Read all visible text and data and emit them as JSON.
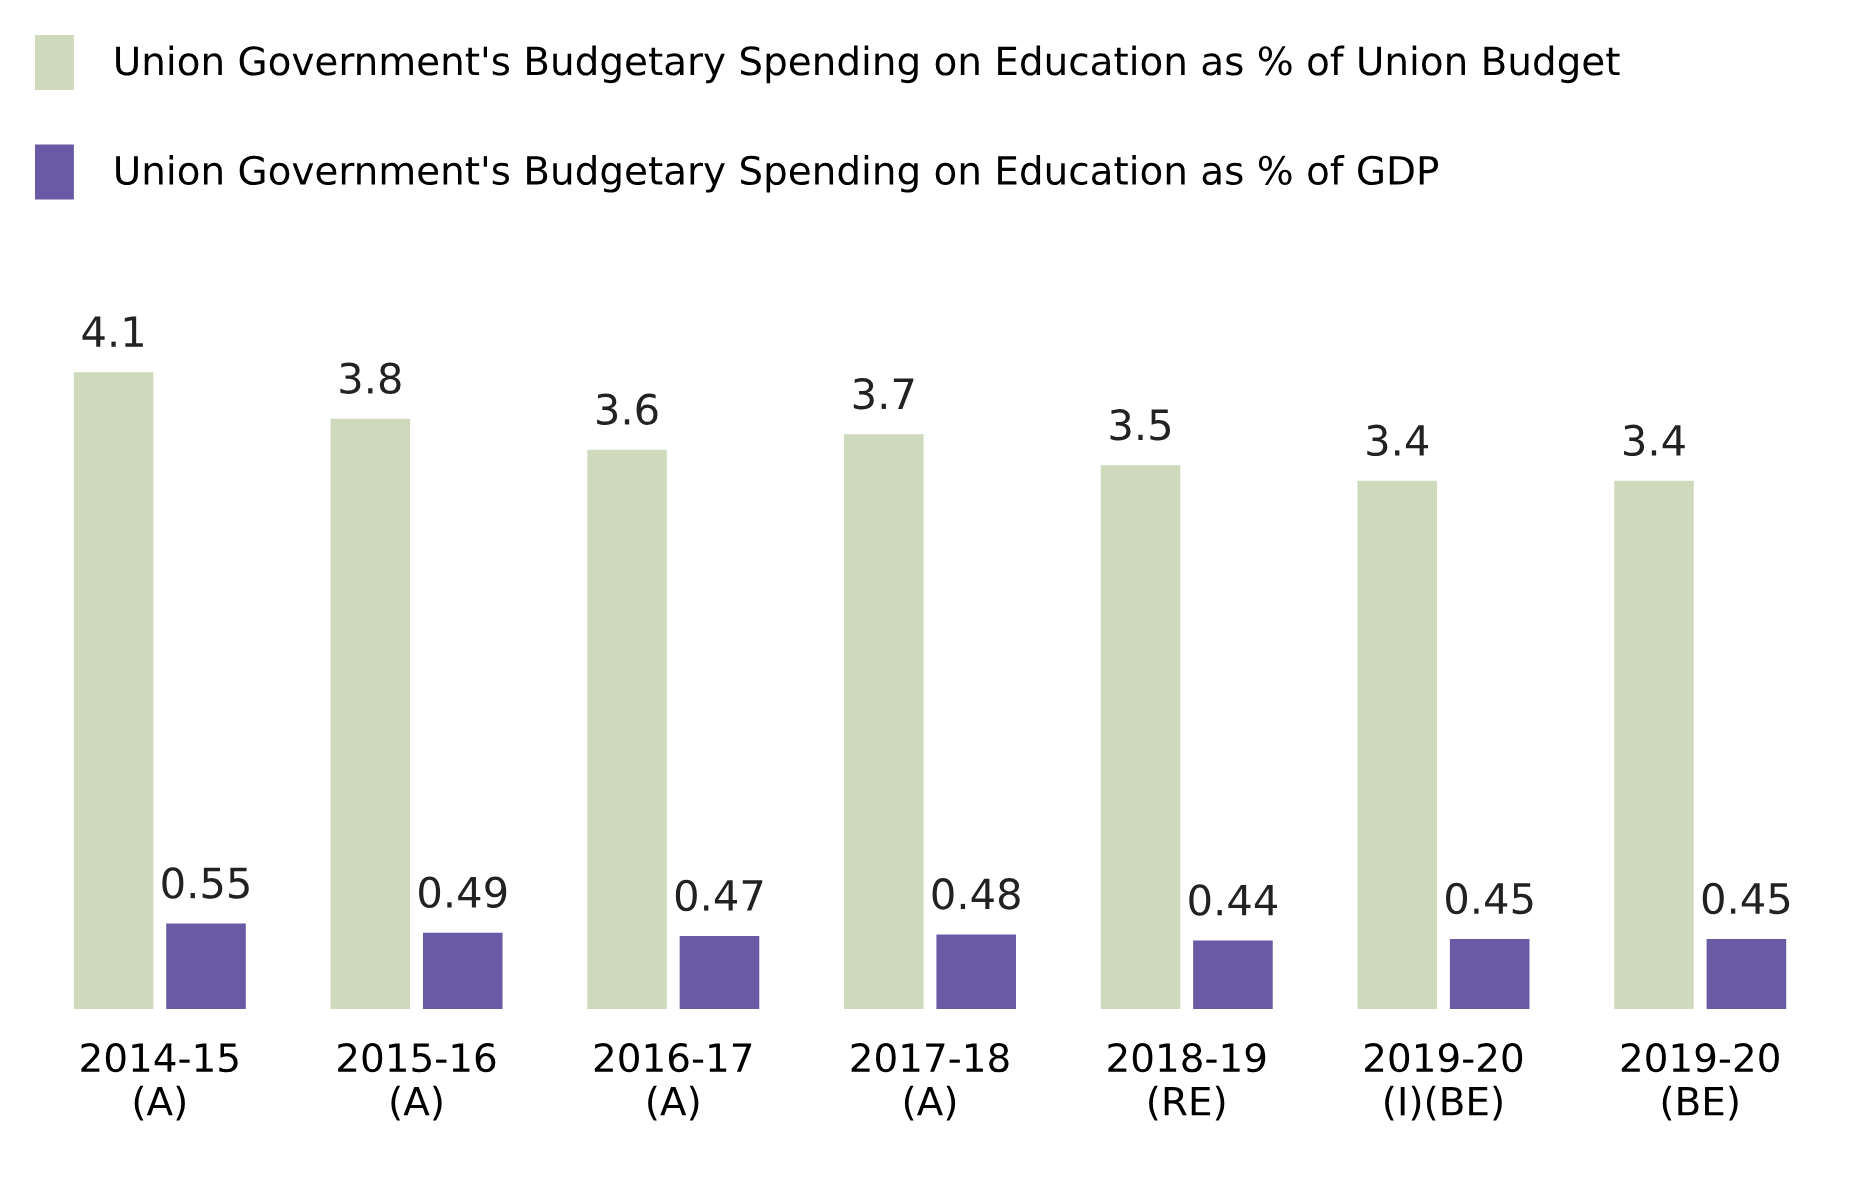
{
  "chart_data": {
    "type": "bar",
    "categories": [
      "2014-15\n(A)",
      "2015-16\n(A)",
      "2016-17\n(A)",
      "2017-18\n(A)",
      "2018-19\n(RE)",
      "2019-20\n(I)(BE)",
      "2019-20\n(BE)"
    ],
    "series": [
      {
        "name": "Union Government's Budgetary Spending on Education as % of Union Budget",
        "color": "#cfdabd",
        "values": [
          4.1,
          3.8,
          3.6,
          3.7,
          3.5,
          3.4,
          3.4
        ]
      },
      {
        "name": "Union Government's Budgetary Spending on Education as % of GDP",
        "color": "#6a5aa5",
        "values": [
          0.55,
          0.49,
          0.47,
          0.48,
          0.44,
          0.45,
          0.45
        ]
      }
    ],
    "data_labels": true,
    "legend": "top left",
    "grid": false
  }
}
